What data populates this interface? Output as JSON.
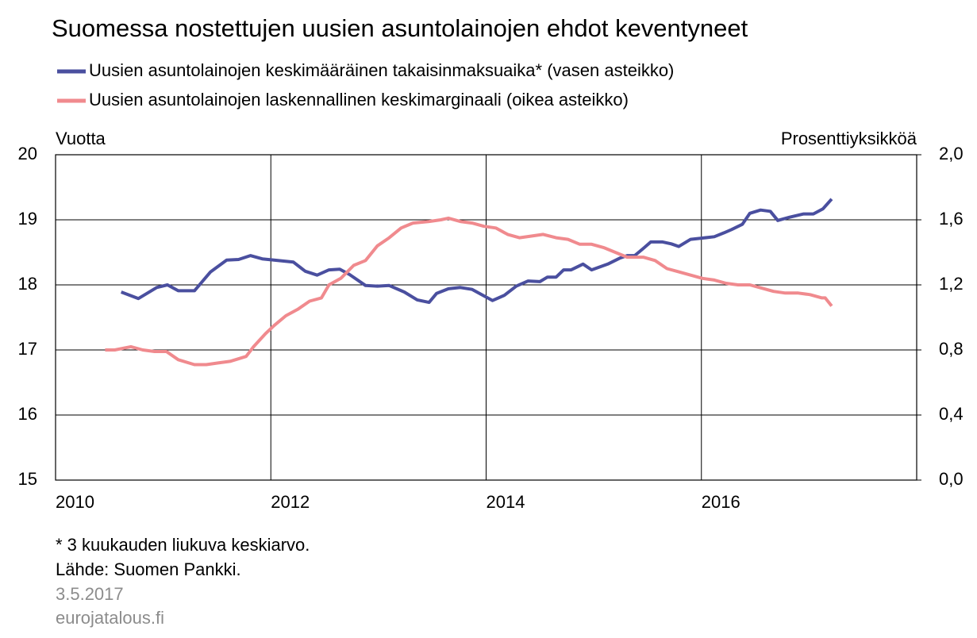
{
  "chart_data": {
    "type": "line",
    "title": "Suomessa nostettujen uusien asuntolainojen ehdot keventyneet",
    "y_label": "Vuotta",
    "y2_label": "Prosenttiyksikköä",
    "footnotes": [
      "* 3 kuukauden liukuva keskiarvo.",
      "Lähde: Suomen Pankki."
    ],
    "date": "3.5.2017",
    "source_site": "eurojatalous.fi",
    "xlim": [
      2010,
      2018
    ],
    "xticks": [
      2010,
      2012,
      2014,
      2016
    ],
    "ylim": [
      15,
      20
    ],
    "yticks": [
      15,
      16,
      17,
      18,
      19,
      20
    ],
    "y2lim": [
      0,
      2
    ],
    "y2ticks": [
      {
        "value": 0,
        "label": "0,0"
      },
      {
        "value": 0.4,
        "label": "0,4"
      },
      {
        "value": 0.8,
        "label": "0,8"
      },
      {
        "value": 1.2,
        "label": "1,2"
      },
      {
        "value": 1.6,
        "label": "1,6"
      },
      {
        "value": 2,
        "label": "2,0"
      }
    ],
    "grid": true,
    "series": [
      {
        "name": "Uusien asuntolainojen keskimääräinen takaisinmaksuaika* (vasen asteikko)",
        "color": "#4a4f9f",
        "x": [
          2010.61,
          2010.77,
          2010.94,
          2011.04,
          2011.14,
          2011.29,
          2011.44,
          2011.59,
          2011.7,
          2011.81,
          2011.92,
          2012.03,
          2012.21,
          2012.32,
          2012.43,
          2012.54,
          2012.64,
          2012.73,
          2012.88,
          2012.99,
          2013.1,
          2013.24,
          2013.36,
          2013.47,
          2013.54,
          2013.65,
          2013.76,
          2013.87,
          2013.98,
          2014.06,
          2014.17,
          2014.28,
          2014.39,
          2014.5,
          2014.57,
          2014.65,
          2014.72,
          2014.79,
          2014.9,
          2014.98,
          2015.13,
          2015.24,
          2015.31,
          2015.38,
          2015.46,
          2015.53,
          2015.64,
          2015.72,
          2015.79,
          2015.9,
          2016.01,
          2016.12,
          2016.21,
          2016.28,
          2016.38,
          2016.45,
          2016.55,
          2016.64,
          2016.71,
          2016.82,
          2016.95,
          2017.04,
          2017.13,
          2017.21
        ],
        "values": [
          17.89,
          17.79,
          17.96,
          18.0,
          17.91,
          17.91,
          18.2,
          18.38,
          18.39,
          18.45,
          18.4,
          18.38,
          18.35,
          18.21,
          18.15,
          18.23,
          18.24,
          18.16,
          17.99,
          17.98,
          17.99,
          17.89,
          17.77,
          17.73,
          17.87,
          17.94,
          17.96,
          17.93,
          17.83,
          17.76,
          17.84,
          17.98,
          18.06,
          18.05,
          18.12,
          18.12,
          18.23,
          18.23,
          18.32,
          18.23,
          18.32,
          18.41,
          18.45,
          18.45,
          18.56,
          18.66,
          18.66,
          18.63,
          18.59,
          18.7,
          18.72,
          18.74,
          18.8,
          18.85,
          18.93,
          19.1,
          19.15,
          19.13,
          18.99,
          19.04,
          19.09,
          19.09,
          19.17,
          19.32
        ]
      },
      {
        "name": "Uusien asuntolainojen laskennallinen keskimarginaali (oikea asteikko)",
        "color": "#f08a8e",
        "axis": "y2",
        "x": [
          2010.46,
          2010.55,
          2010.7,
          2010.81,
          2010.92,
          2011.03,
          2011.14,
          2011.29,
          2011.4,
          2011.51,
          2011.62,
          2011.77,
          2011.84,
          2011.95,
          2012.03,
          2012.14,
          2012.25,
          2012.36,
          2012.47,
          2012.54,
          2012.65,
          2012.77,
          2012.88,
          2012.99,
          2013.1,
          2013.21,
          2013.32,
          2013.47,
          2013.58,
          2013.65,
          2013.76,
          2013.87,
          2013.98,
          2014.09,
          2014.2,
          2014.31,
          2014.42,
          2014.53,
          2014.65,
          2014.76,
          2014.87,
          2014.98,
          2015.09,
          2015.2,
          2015.31,
          2015.46,
          2015.57,
          2015.68,
          2015.79,
          2015.9,
          2016.01,
          2016.12,
          2016.23,
          2016.34,
          2016.45,
          2016.56,
          2016.67,
          2016.78,
          2016.9,
          2017.01,
          2017.12,
          2017.15,
          2017.21
        ],
        "values": [
          0.8,
          0.8,
          0.82,
          0.8,
          0.79,
          0.79,
          0.74,
          0.71,
          0.71,
          0.72,
          0.73,
          0.76,
          0.82,
          0.9,
          0.95,
          1.01,
          1.05,
          1.1,
          1.12,
          1.2,
          1.24,
          1.32,
          1.35,
          1.44,
          1.49,
          1.55,
          1.58,
          1.59,
          1.6,
          1.61,
          1.59,
          1.58,
          1.56,
          1.55,
          1.51,
          1.49,
          1.5,
          1.51,
          1.49,
          1.48,
          1.45,
          1.45,
          1.43,
          1.4,
          1.37,
          1.37,
          1.35,
          1.3,
          1.28,
          1.26,
          1.24,
          1.23,
          1.21,
          1.2,
          1.2,
          1.18,
          1.16,
          1.15,
          1.15,
          1.14,
          1.12,
          1.12,
          1.07
        ]
      }
    ]
  }
}
